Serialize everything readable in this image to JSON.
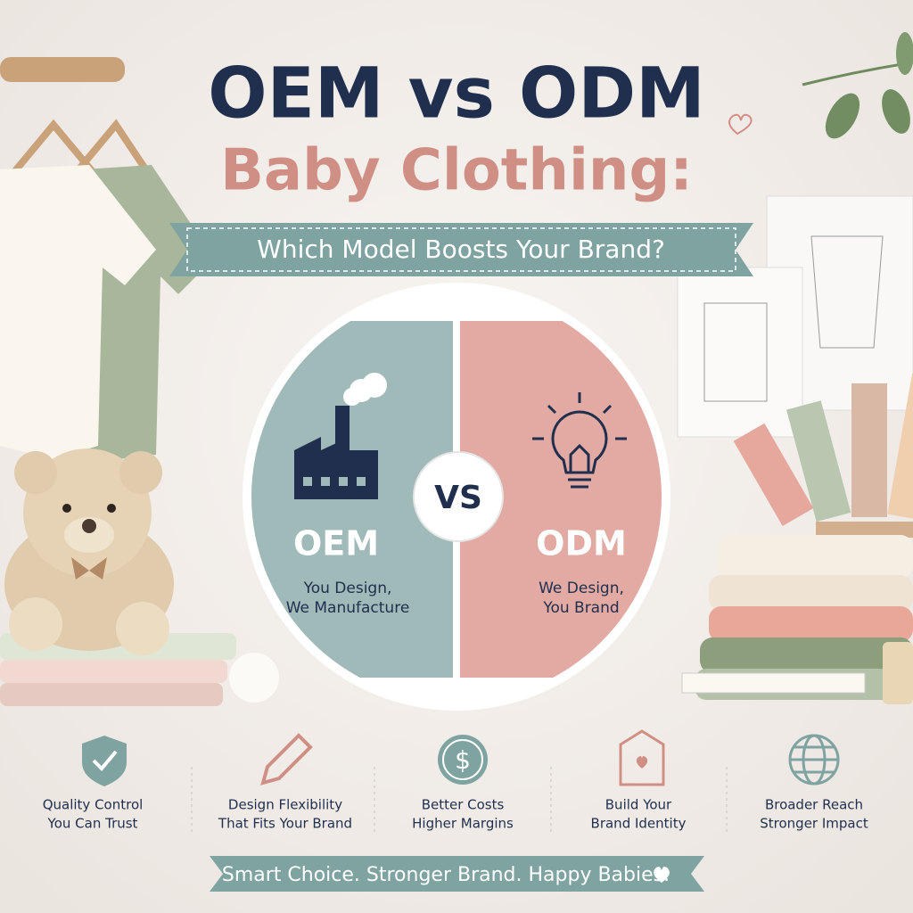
{
  "header": {
    "title": "OEM vs ODM",
    "subtitle": "Baby Clothing:",
    "banner": "Which Model Boosts Your Brand?"
  },
  "comparison": {
    "left": {
      "label": "OEM",
      "lines": [
        "You Design,",
        "We Manufacture"
      ]
    },
    "vs": "VS",
    "right": {
      "label": "ODM",
      "lines": [
        "We Design,",
        "You Brand"
      ]
    }
  },
  "features": [
    {
      "lines": [
        "Quality Control",
        "You Can Trust"
      ]
    },
    {
      "lines": [
        "Design Flexibility",
        "That Fits Your Brand"
      ]
    },
    {
      "lines": [
        "Better Costs",
        "Higher Margins"
      ]
    },
    {
      "lines": [
        "Build Your",
        "Brand Identity"
      ]
    },
    {
      "lines": [
        "Broader Reach",
        "Stronger Impact"
      ]
    }
  ],
  "footer": "Smart Choice. Stronger Brand. Happy Babies."
}
